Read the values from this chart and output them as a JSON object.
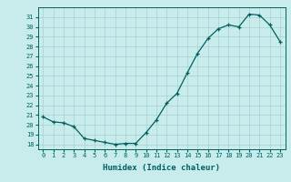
{
  "x": [
    0,
    1,
    2,
    3,
    4,
    5,
    6,
    7,
    8,
    9,
    10,
    11,
    12,
    13,
    14,
    15,
    16,
    17,
    18,
    19,
    20,
    21,
    22,
    23
  ],
  "y": [
    20.8,
    20.3,
    20.2,
    19.8,
    18.6,
    18.4,
    18.2,
    18.0,
    18.1,
    18.1,
    19.2,
    20.5,
    22.2,
    23.2,
    25.3,
    27.3,
    28.8,
    29.8,
    30.2,
    30.0,
    31.3,
    31.2,
    30.2,
    28.5
  ],
  "line_color": "#006060",
  "marker": "+",
  "markersize": 3.5,
  "linewidth": 0.9,
  "markeredgewidth": 0.9,
  "bg_color": "#c8ecec",
  "grid_color": "#a8d0d0",
  "xlabel": "Humidex (Indice chaleur)",
  "xlabel_color": "#006060",
  "tick_color": "#006060",
  "xlim": [
    -0.5,
    23.5
  ],
  "ylim": [
    17.5,
    32.0
  ],
  "yticks": [
    18,
    19,
    20,
    21,
    22,
    23,
    24,
    25,
    26,
    27,
    28,
    29,
    30,
    31
  ],
  "xticks": [
    0,
    1,
    2,
    3,
    4,
    5,
    6,
    7,
    8,
    9,
    10,
    11,
    12,
    13,
    14,
    15,
    16,
    17,
    18,
    19,
    20,
    21,
    22,
    23
  ],
  "tick_fontsize": 5.0,
  "xlabel_fontsize": 6.5
}
